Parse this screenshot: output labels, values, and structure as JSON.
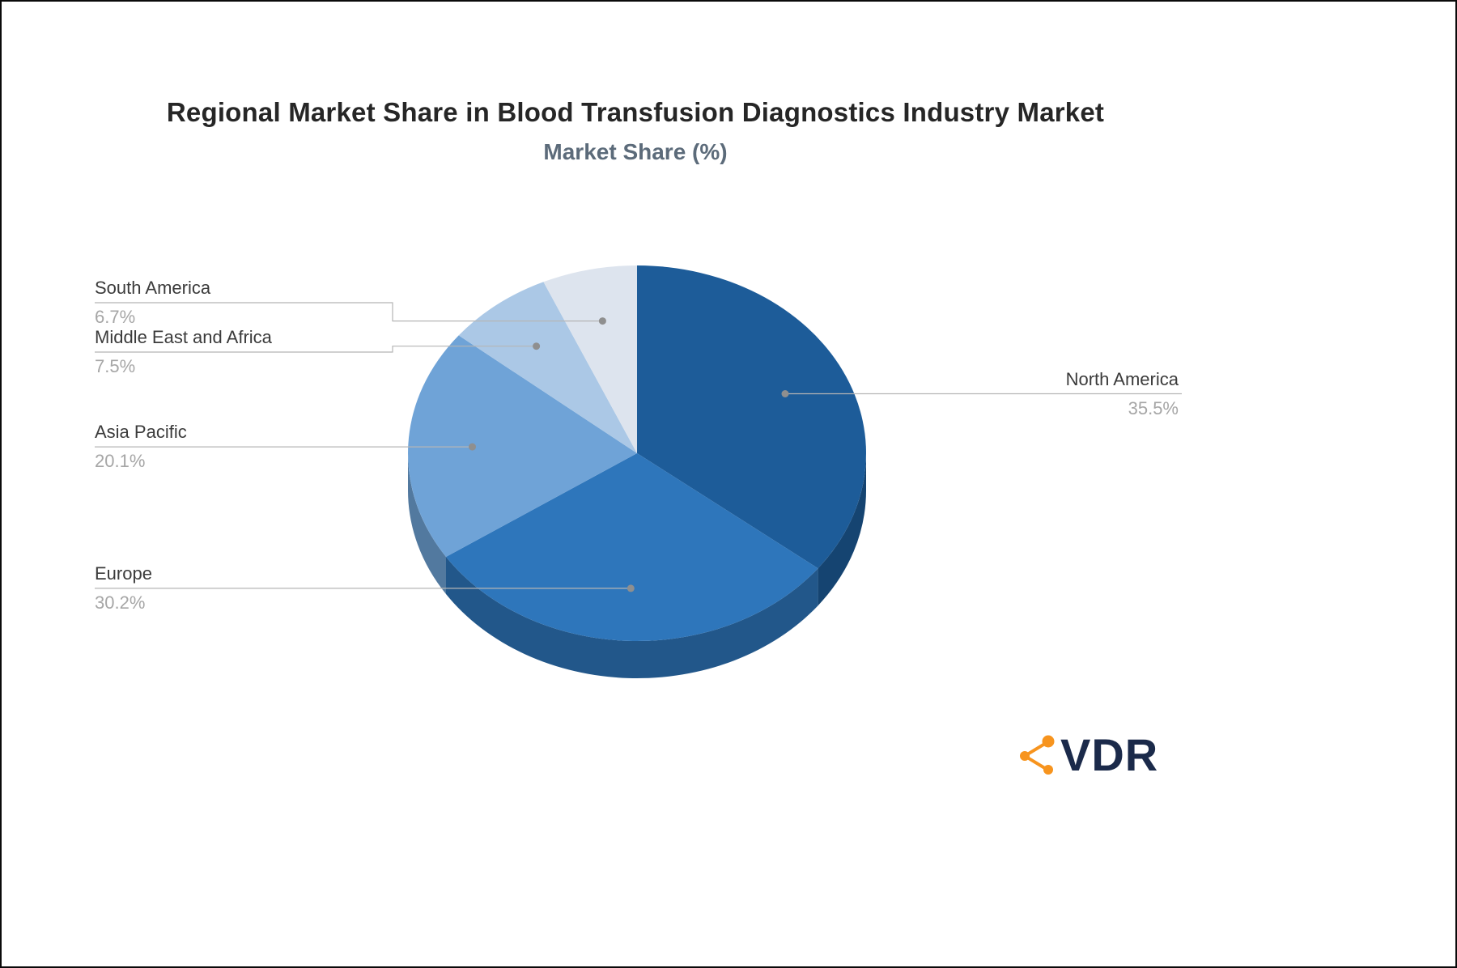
{
  "chart_data": {
    "type": "pie",
    "title": "Regional Market Share in Blood Transfusion Diagnostics Industry Market",
    "subtitle": "Market Share (%)",
    "unit": "%",
    "effect": "3d",
    "direction": "clockwise",
    "start_angle_deg": 0,
    "legend_position": "none",
    "label_style": "callout-lines",
    "slices": [
      {
        "label": "North America",
        "value": 35.5,
        "pct_label": "35.5%",
        "color": "#1d5c99"
      },
      {
        "label": "Europe",
        "value": 30.2,
        "pct_label": "30.2%",
        "color": "#2e76bb"
      },
      {
        "label": "Asia Pacific",
        "value": 20.1,
        "pct_label": "20.1%",
        "color": "#6fa3d7"
      },
      {
        "label": "Middle East and Africa",
        "value": 7.5,
        "pct_label": "7.5%",
        "color": "#abc8e6"
      },
      {
        "label": "South America",
        "value": 6.7,
        "pct_label": "6.7%",
        "color": "#dde4ee"
      }
    ],
    "callout_line_color": "#b5b5b5",
    "callout_dot_color": "#8f8f8f"
  },
  "branding": {
    "logo_text": "VDR",
    "logo_color": "#1b2a4a",
    "icon_color": "#f7941e"
  }
}
